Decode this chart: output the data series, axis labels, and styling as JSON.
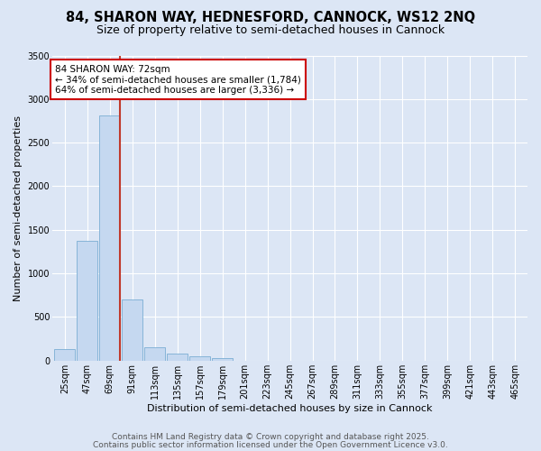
{
  "title1": "84, SHARON WAY, HEDNESFORD, CANNOCK, WS12 2NQ",
  "title2": "Size of property relative to semi-detached houses in Cannock",
  "xlabel": "Distribution of semi-detached houses by size in Cannock",
  "ylabel": "Number of semi-detached properties",
  "footer1": "Contains HM Land Registry data © Crown copyright and database right 2025.",
  "footer2": "Contains public sector information licensed under the Open Government Licence v3.0.",
  "annotation_title": "84 SHARON WAY: 72sqm",
  "annotation_line1": "← 34% of semi-detached houses are smaller (1,784)",
  "annotation_line2": "64% of semi-detached houses are larger (3,336) →",
  "bar_categories": [
    "25sqm",
    "47sqm",
    "69sqm",
    "91sqm",
    "113sqm",
    "135sqm",
    "157sqm",
    "179sqm",
    "201sqm",
    "223sqm",
    "245sqm",
    "267sqm",
    "289sqm",
    "311sqm",
    "333sqm",
    "355sqm",
    "377sqm",
    "399sqm",
    "421sqm",
    "443sqm",
    "465sqm"
  ],
  "bar_values": [
    130,
    1370,
    2810,
    700,
    155,
    80,
    45,
    30,
    0,
    0,
    0,
    0,
    0,
    0,
    0,
    0,
    0,
    0,
    0,
    0,
    0
  ],
  "bar_color": "#c5d8f0",
  "bar_edge_color": "#7aadd4",
  "vline_color": "#c0392b",
  "vline_x_idx": 2,
  "annotation_box_edge_color": "#cc0000",
  "ylim": [
    0,
    3500
  ],
  "yticks": [
    0,
    500,
    1000,
    1500,
    2000,
    2500,
    3000,
    3500
  ],
  "bg_color": "#dce6f5",
  "plot_bg_color": "#dce6f5",
  "grid_color": "#ffffff",
  "title_fontsize": 10.5,
  "subtitle_fontsize": 9,
  "axis_label_fontsize": 8,
  "tick_fontsize": 7,
  "annotation_fontsize": 7.5,
  "footer_fontsize": 6.5
}
